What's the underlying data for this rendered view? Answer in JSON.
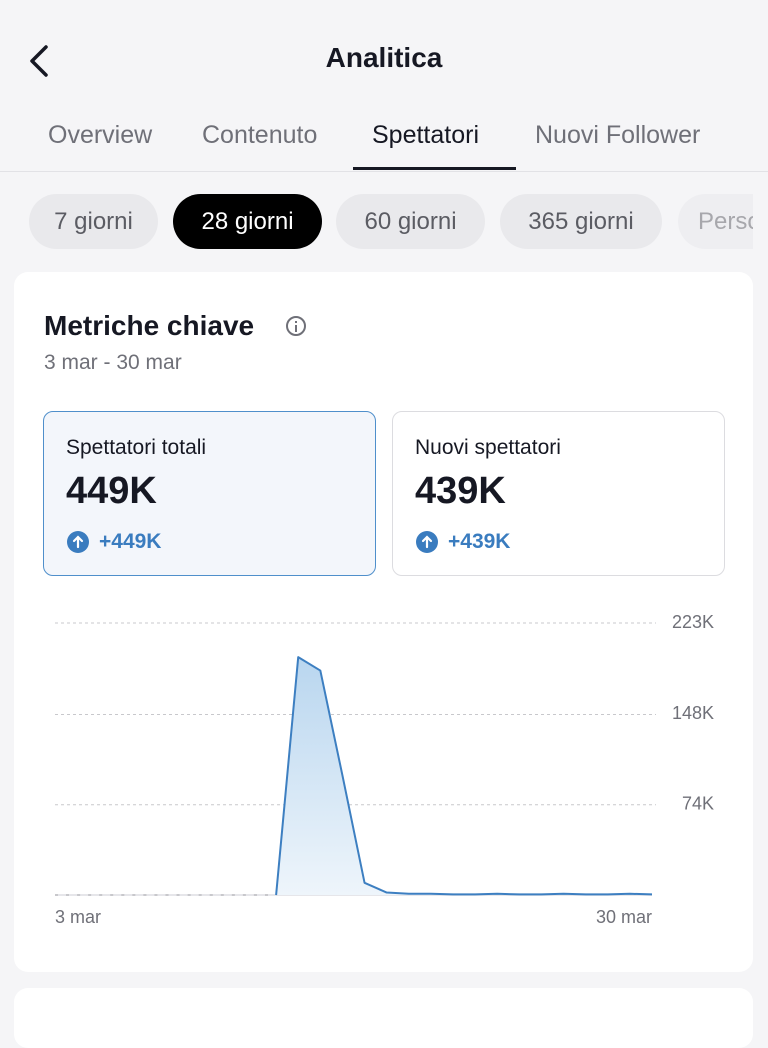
{
  "header": {
    "title": "Analitica"
  },
  "tabs": [
    "Overview",
    "Contenuto",
    "Spettatori",
    "Nuovi Follower"
  ],
  "periods": [
    "7 giorni",
    "28 giorni",
    "60 giorni",
    "365 giorni",
    "Personalizzato"
  ],
  "card": {
    "title": "Metriche chiave",
    "date_range": "3 mar - 30 mar",
    "metrics": [
      {
        "label": "Spettatori totali",
        "value": "449K",
        "change": "+449K"
      },
      {
        "label": "Nuovi spettatori",
        "value": "439K",
        "change": "+439K"
      }
    ]
  },
  "chart_data": {
    "type": "line",
    "categories": [
      "3 mar",
      null,
      null,
      null,
      null,
      null,
      null,
      null,
      null,
      null,
      null,
      null,
      null,
      null,
      null,
      null,
      null,
      null,
      null,
      null,
      null,
      null,
      null,
      null,
      null,
      null,
      null,
      "30 mar"
    ],
    "series": [
      {
        "name": "Spettatori totali",
        "color": "#3d7fc1",
        "values": [
          null,
          null,
          null,
          null,
          null,
          null,
          null,
          null,
          null,
          null,
          0,
          195000,
          184000,
          98000,
          10000,
          2000,
          1000,
          1000,
          500,
          500,
          1000,
          500,
          500,
          1000,
          500,
          500,
          1000,
          500
        ]
      }
    ],
    "ylim": [
      0,
      223000
    ],
    "yticks": [
      {
        "value": 74000,
        "label": "74K"
      },
      {
        "value": 148000,
        "label": "148K"
      },
      {
        "value": 223000,
        "label": "223K"
      }
    ],
    "grid": true
  }
}
